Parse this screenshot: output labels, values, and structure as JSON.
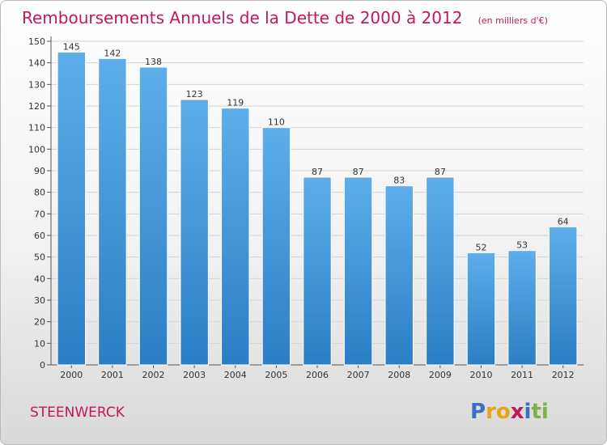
{
  "chart_data": {
    "type": "bar",
    "title": "Remboursements Annuels de la Dette de 2000 à 2012",
    "unit": "(en milliers d'€)",
    "categories": [
      "2000",
      "2001",
      "2002",
      "2003",
      "2004",
      "2005",
      "2006",
      "2007",
      "2008",
      "2009",
      "2010",
      "2011",
      "2012"
    ],
    "values": [
      145,
      142,
      138,
      123,
      119,
      110,
      87,
      87,
      83,
      87,
      52,
      53,
      64
    ],
    "xlabel": "",
    "ylabel": "",
    "ylim": [
      0,
      150
    ],
    "yticks": [
      0,
      10,
      20,
      30,
      40,
      50,
      60,
      70,
      80,
      90,
      100,
      110,
      120,
      130,
      140,
      150
    ],
    "grid": true,
    "bar_color_top": "#5daeea",
    "bar_color_bottom": "#2b7ec4"
  },
  "place": {
    "name": "STEENWERCK"
  },
  "logo": {
    "letters": [
      "P",
      "r",
      "o",
      "x",
      "i",
      "t",
      "i"
    ],
    "colors": [
      "#3b6fc4",
      "#e8a317",
      "#e8a317",
      "#c2185b",
      "#3b6fc4",
      "#7cb342",
      "#7cb342"
    ]
  }
}
